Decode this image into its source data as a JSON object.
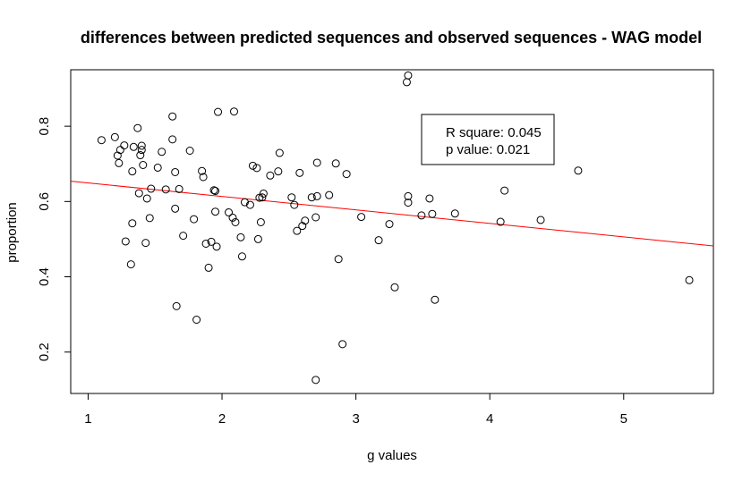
{
  "chart_data": {
    "type": "scatter",
    "title": "differences between predicted sequences and observed sequences - WAG model",
    "xlabel": "g values",
    "ylabel": "proportion",
    "xlim": [
      0.87,
      5.67
    ],
    "ylim": [
      0.09,
      0.95
    ],
    "xticks": [
      1,
      2,
      3,
      4,
      5
    ],
    "xtick_labels": [
      "1",
      "2",
      "3",
      "4",
      "5"
    ],
    "yticks": [
      0.2,
      0.4,
      0.6,
      0.8
    ],
    "ytick_labels": [
      "0.2",
      "0.4",
      "0.6",
      "0.8"
    ],
    "grid": false,
    "legend_position": "top-right",
    "annotations": [
      "R square: 0.045",
      "p value: 0.021"
    ],
    "regression_line": {
      "x": [
        0.87,
        5.67
      ],
      "y": [
        0.654,
        0.482
      ],
      "color": "#ff0000"
    },
    "points": [
      [
        1.1,
        0.763
      ],
      [
        1.2,
        0.771
      ],
      [
        1.22,
        0.722
      ],
      [
        1.23,
        0.702
      ],
      [
        1.24,
        0.737
      ],
      [
        1.27,
        0.749
      ],
      [
        1.28,
        0.494
      ],
      [
        1.32,
        0.433
      ],
      [
        1.33,
        0.68
      ],
      [
        1.33,
        0.542
      ],
      [
        1.34,
        0.745
      ],
      [
        1.37,
        0.795
      ],
      [
        1.38,
        0.622
      ],
      [
        1.39,
        0.723
      ],
      [
        1.4,
        0.737
      ],
      [
        1.4,
        0.748
      ],
      [
        1.41,
        0.697
      ],
      [
        1.43,
        0.49
      ],
      [
        1.44,
        0.608
      ],
      [
        1.46,
        0.556
      ],
      [
        1.47,
        0.634
      ],
      [
        1.52,
        0.69
      ],
      [
        1.55,
        0.732
      ],
      [
        1.58,
        0.632
      ],
      [
        1.63,
        0.826
      ],
      [
        1.63,
        0.765
      ],
      [
        1.65,
        0.678
      ],
      [
        1.65,
        0.581
      ],
      [
        1.66,
        0.322
      ],
      [
        1.68,
        0.633
      ],
      [
        1.71,
        0.509
      ],
      [
        1.76,
        0.735
      ],
      [
        1.79,
        0.553
      ],
      [
        1.81,
        0.286
      ],
      [
        1.85,
        0.681
      ],
      [
        1.86,
        0.665
      ],
      [
        1.88,
        0.488
      ],
      [
        1.9,
        0.424
      ],
      [
        1.92,
        0.493
      ],
      [
        1.94,
        0.63
      ],
      [
        1.95,
        0.628
      ],
      [
        1.95,
        0.573
      ],
      [
        1.96,
        0.48
      ],
      [
        1.97,
        0.838
      ],
      [
        2.05,
        0.571
      ],
      [
        2.08,
        0.557
      ],
      [
        2.09,
        0.839
      ],
      [
        2.1,
        0.545
      ],
      [
        2.14,
        0.505
      ],
      [
        2.15,
        0.454
      ],
      [
        2.17,
        0.598
      ],
      [
        2.21,
        0.591
      ],
      [
        2.23,
        0.695
      ],
      [
        2.26,
        0.689
      ],
      [
        2.27,
        0.5
      ],
      [
        2.28,
        0.61
      ],
      [
        2.29,
        0.545
      ],
      [
        2.3,
        0.611
      ],
      [
        2.31,
        0.621
      ],
      [
        2.36,
        0.669
      ],
      [
        2.42,
        0.68
      ],
      [
        2.43,
        0.729
      ],
      [
        2.52,
        0.611
      ],
      [
        2.54,
        0.591
      ],
      [
        2.56,
        0.522
      ],
      [
        2.58,
        0.676
      ],
      [
        2.6,
        0.535
      ],
      [
        2.62,
        0.549
      ],
      [
        2.67,
        0.611
      ],
      [
        2.7,
        0.126
      ],
      [
        2.7,
        0.558
      ],
      [
        2.71,
        0.703
      ],
      [
        2.71,
        0.614
      ],
      [
        2.8,
        0.617
      ],
      [
        2.85,
        0.701
      ],
      [
        2.87,
        0.447
      ],
      [
        2.9,
        0.221
      ],
      [
        2.93,
        0.673
      ],
      [
        3.04,
        0.559
      ],
      [
        3.17,
        0.497
      ],
      [
        3.25,
        0.54
      ],
      [
        3.29,
        0.372
      ],
      [
        3.38,
        0.917
      ],
      [
        3.39,
        0.935
      ],
      [
        3.39,
        0.614
      ],
      [
        3.39,
        0.597
      ],
      [
        3.49,
        0.563
      ],
      [
        3.55,
        0.608
      ],
      [
        3.57,
        0.567
      ],
      [
        3.59,
        0.339
      ],
      [
        3.74,
        0.568
      ],
      [
        4.08,
        0.546
      ],
      [
        4.11,
        0.629
      ],
      [
        4.38,
        0.551
      ],
      [
        4.66,
        0.682
      ],
      [
        5.49,
        0.391
      ]
    ]
  }
}
